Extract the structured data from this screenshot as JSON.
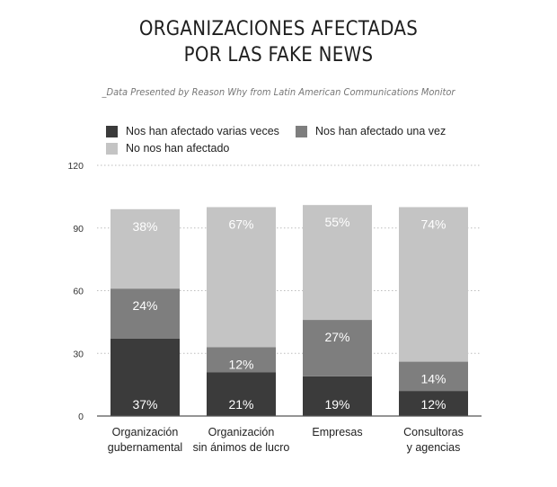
{
  "title": "ORGANIZACIONES AFECTADAS\nPOR LAS FAKE NEWS",
  "subtitle": "_Data Presented by Reason Why from Latin American Communications Monitor",
  "colors": {
    "dark": "#3b3b3b",
    "mid": "#7e7e7e",
    "light": "#c4c4c4",
    "grid": "#bdbdbd",
    "axis": "#555555"
  },
  "legend": [
    {
      "label": "Nos han afectado varias veces",
      "color": "#3b3b3b"
    },
    {
      "label": "Nos han afectado una vez",
      "color": "#7e7e7e"
    },
    {
      "label": "No nos han afectado",
      "color": "#c4c4c4"
    }
  ],
  "chart_data": {
    "type": "bar",
    "stacked": true,
    "title": "ORGANIZACIONES AFECTADAS POR LAS FAKE NEWS",
    "subtitle": "_Data Presented by Reason Why from Latin American Communications Monitor",
    "categories": [
      "Organización\ngubernamental",
      "Organización\nsin ánimos de lucro",
      "Empresas",
      "Consultoras\ny agencias"
    ],
    "series": [
      {
        "name": "Nos han afectado varias veces",
        "values": [
          37,
          21,
          19,
          12
        ],
        "labels": [
          "37%",
          "21%",
          "19%",
          "12%"
        ],
        "color": "#3b3b3b"
      },
      {
        "name": "Nos han afectado una vez",
        "values": [
          24,
          12,
          27,
          14
        ],
        "labels": [
          "24%",
          "12%",
          "27%",
          "14%"
        ],
        "color": "#7e7e7e"
      },
      {
        "name": "No nos han afectado",
        "values": [
          38,
          67,
          55,
          74
        ],
        "labels": [
          "38%",
          "67%",
          "55%",
          "74%"
        ],
        "color": "#c4c4c4"
      }
    ],
    "ylim": [
      0,
      120
    ],
    "yticks": [
      0,
      30,
      60,
      90,
      120
    ],
    "yticklabels": [
      "0",
      "30",
      "60",
      "90",
      "120"
    ],
    "grid": true,
    "legend_position": "top"
  }
}
